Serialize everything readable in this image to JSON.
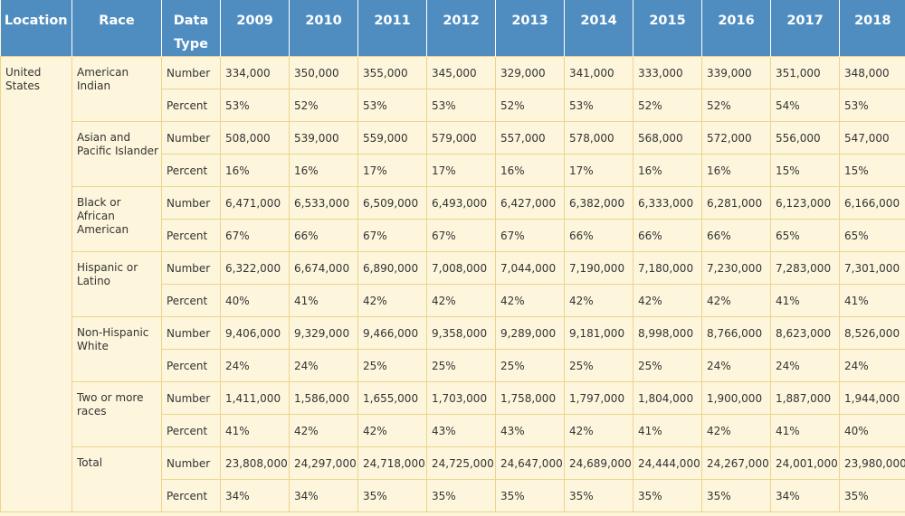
{
  "header": {
    "location": "Location",
    "race": "Race",
    "data_type": "Data Type",
    "years": [
      "2009",
      "2010",
      "2011",
      "2012",
      "2013",
      "2014",
      "2015",
      "2016",
      "2017",
      "2018"
    ]
  },
  "location": "United States",
  "number_label": "Number",
  "percent_label": "Percent",
  "groups": [
    {
      "race": "American Indian",
      "number": [
        "334,000",
        "350,000",
        "355,000",
        "345,000",
        "329,000",
        "341,000",
        "333,000",
        "339,000",
        "351,000",
        "348,000"
      ],
      "percent": [
        "53%",
        "52%",
        "53%",
        "53%",
        "52%",
        "53%",
        "52%",
        "52%",
        "54%",
        "53%"
      ]
    },
    {
      "race": "Asian and Pacific Islander",
      "number": [
        "508,000",
        "539,000",
        "559,000",
        "579,000",
        "557,000",
        "578,000",
        "568,000",
        "572,000",
        "556,000",
        "547,000"
      ],
      "percent": [
        "16%",
        "16%",
        "17%",
        "17%",
        "16%",
        "17%",
        "16%",
        "16%",
        "15%",
        "15%"
      ]
    },
    {
      "race": "Black or African American",
      "number": [
        "6,471,000",
        "6,533,000",
        "6,509,000",
        "6,493,000",
        "6,427,000",
        "6,382,000",
        "6,333,000",
        "6,281,000",
        "6,123,000",
        "6,166,000"
      ],
      "percent": [
        "67%",
        "66%",
        "67%",
        "67%",
        "67%",
        "66%",
        "66%",
        "66%",
        "65%",
        "65%"
      ]
    },
    {
      "race": "Hispanic or Latino",
      "number": [
        "6,322,000",
        "6,674,000",
        "6,890,000",
        "7,008,000",
        "7,044,000",
        "7,190,000",
        "7,180,000",
        "7,230,000",
        "7,283,000",
        "7,301,000"
      ],
      "percent": [
        "40%",
        "41%",
        "42%",
        "42%",
        "42%",
        "42%",
        "42%",
        "42%",
        "41%",
        "41%"
      ]
    },
    {
      "race": "Non-Hispanic White",
      "number": [
        "9,406,000",
        "9,329,000",
        "9,466,000",
        "9,358,000",
        "9,289,000",
        "9,181,000",
        "8,998,000",
        "8,766,000",
        "8,623,000",
        "8,526,000"
      ],
      "percent": [
        "24%",
        "24%",
        "25%",
        "25%",
        "25%",
        "25%",
        "25%",
        "24%",
        "24%",
        "24%"
      ]
    },
    {
      "race": "Two or more races",
      "number": [
        "1,411,000",
        "1,586,000",
        "1,655,000",
        "1,703,000",
        "1,758,000",
        "1,797,000",
        "1,804,000",
        "1,900,000",
        "1,887,000",
        "1,944,000"
      ],
      "percent": [
        "41%",
        "42%",
        "42%",
        "43%",
        "43%",
        "42%",
        "41%",
        "42%",
        "41%",
        "40%"
      ]
    },
    {
      "race": "Total",
      "number": [
        "23,808,000",
        "24,297,000",
        "24,718,000",
        "24,725,000",
        "24,647,000",
        "24,689,000",
        "24,444,000",
        "24,267,000",
        "24,001,000",
        "23,980,000"
      ],
      "percent": [
        "34%",
        "34%",
        "35%",
        "35%",
        "35%",
        "35%",
        "35%",
        "35%",
        "34%",
        "35%"
      ]
    }
  ]
}
